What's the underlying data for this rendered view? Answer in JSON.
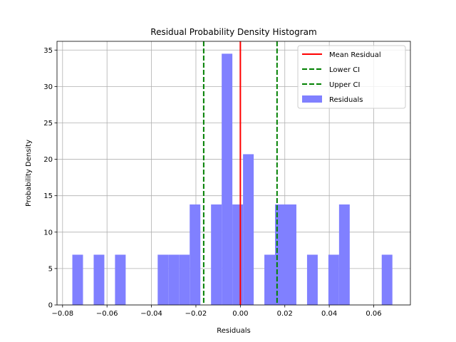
{
  "chart_data": {
    "type": "bar",
    "title": "Residual Probability Density Histogram",
    "xlabel": "Residuals",
    "ylabel": "Probability Density",
    "xlim": [
      -0.0825,
      0.0765
    ],
    "ylim": [
      0,
      36.2
    ],
    "xticks": [
      -0.08,
      -0.06,
      -0.04,
      -0.02,
      0.0,
      0.02,
      0.04,
      0.06
    ],
    "xtick_labels": [
      "−0.08",
      "−0.06",
      "−0.04",
      "−0.02",
      "0.00",
      "0.02",
      "0.04",
      "0.06"
    ],
    "yticks": [
      0,
      5,
      10,
      15,
      20,
      25,
      30,
      35
    ],
    "ytick_labels": [
      "0",
      "5",
      "10",
      "15",
      "20",
      "25",
      "30",
      "35"
    ],
    "grid": true,
    "legend_position": "top-right",
    "bin_width": 0.0048,
    "series": [
      {
        "name": "Residuals",
        "color": "#8080ff",
        "bins": [
          {
            "x0": -0.0756,
            "density": 6.9
          },
          {
            "x0": -0.066,
            "density": 6.9
          },
          {
            "x0": -0.0564,
            "density": 6.9
          },
          {
            "x0": -0.0372,
            "density": 6.9
          },
          {
            "x0": -0.0324,
            "density": 6.9
          },
          {
            "x0": -0.0276,
            "density": 6.9
          },
          {
            "x0": -0.0228,
            "density": 13.8
          },
          {
            "x0": -0.0132,
            "density": 13.8
          },
          {
            "x0": -0.0084,
            "density": 34.5
          },
          {
            "x0": -0.0036,
            "density": 13.8
          },
          {
            "x0": 0.0012,
            "density": 20.7
          },
          {
            "x0": 0.0108,
            "density": 6.9
          },
          {
            "x0": 0.0156,
            "density": 13.8
          },
          {
            "x0": 0.0204,
            "density": 13.8
          },
          {
            "x0": 0.03,
            "density": 6.9
          },
          {
            "x0": 0.0396,
            "density": 6.9
          },
          {
            "x0": 0.0444,
            "density": 13.8
          },
          {
            "x0": 0.0636,
            "density": 6.9
          }
        ]
      }
    ],
    "vlines": [
      {
        "name": "Mean Residual",
        "x": 0.0,
        "color": "#ff0000",
        "style": "solid"
      },
      {
        "name": "Lower CI",
        "x": -0.0165,
        "color": "#008000",
        "style": "dashed"
      },
      {
        "name": "Upper CI",
        "x": 0.0165,
        "color": "#008000",
        "style": "dashed"
      }
    ],
    "legend": [
      {
        "label": "Mean Residual",
        "kind": "line",
        "color": "#ff0000",
        "style": "solid"
      },
      {
        "label": "Lower CI",
        "kind": "line",
        "color": "#008000",
        "style": "dashed"
      },
      {
        "label": "Upper CI",
        "kind": "line",
        "color": "#008000",
        "style": "dashed"
      },
      {
        "label": "Residuals",
        "kind": "patch",
        "color": "#8080ff",
        "style": "solid"
      }
    ]
  }
}
